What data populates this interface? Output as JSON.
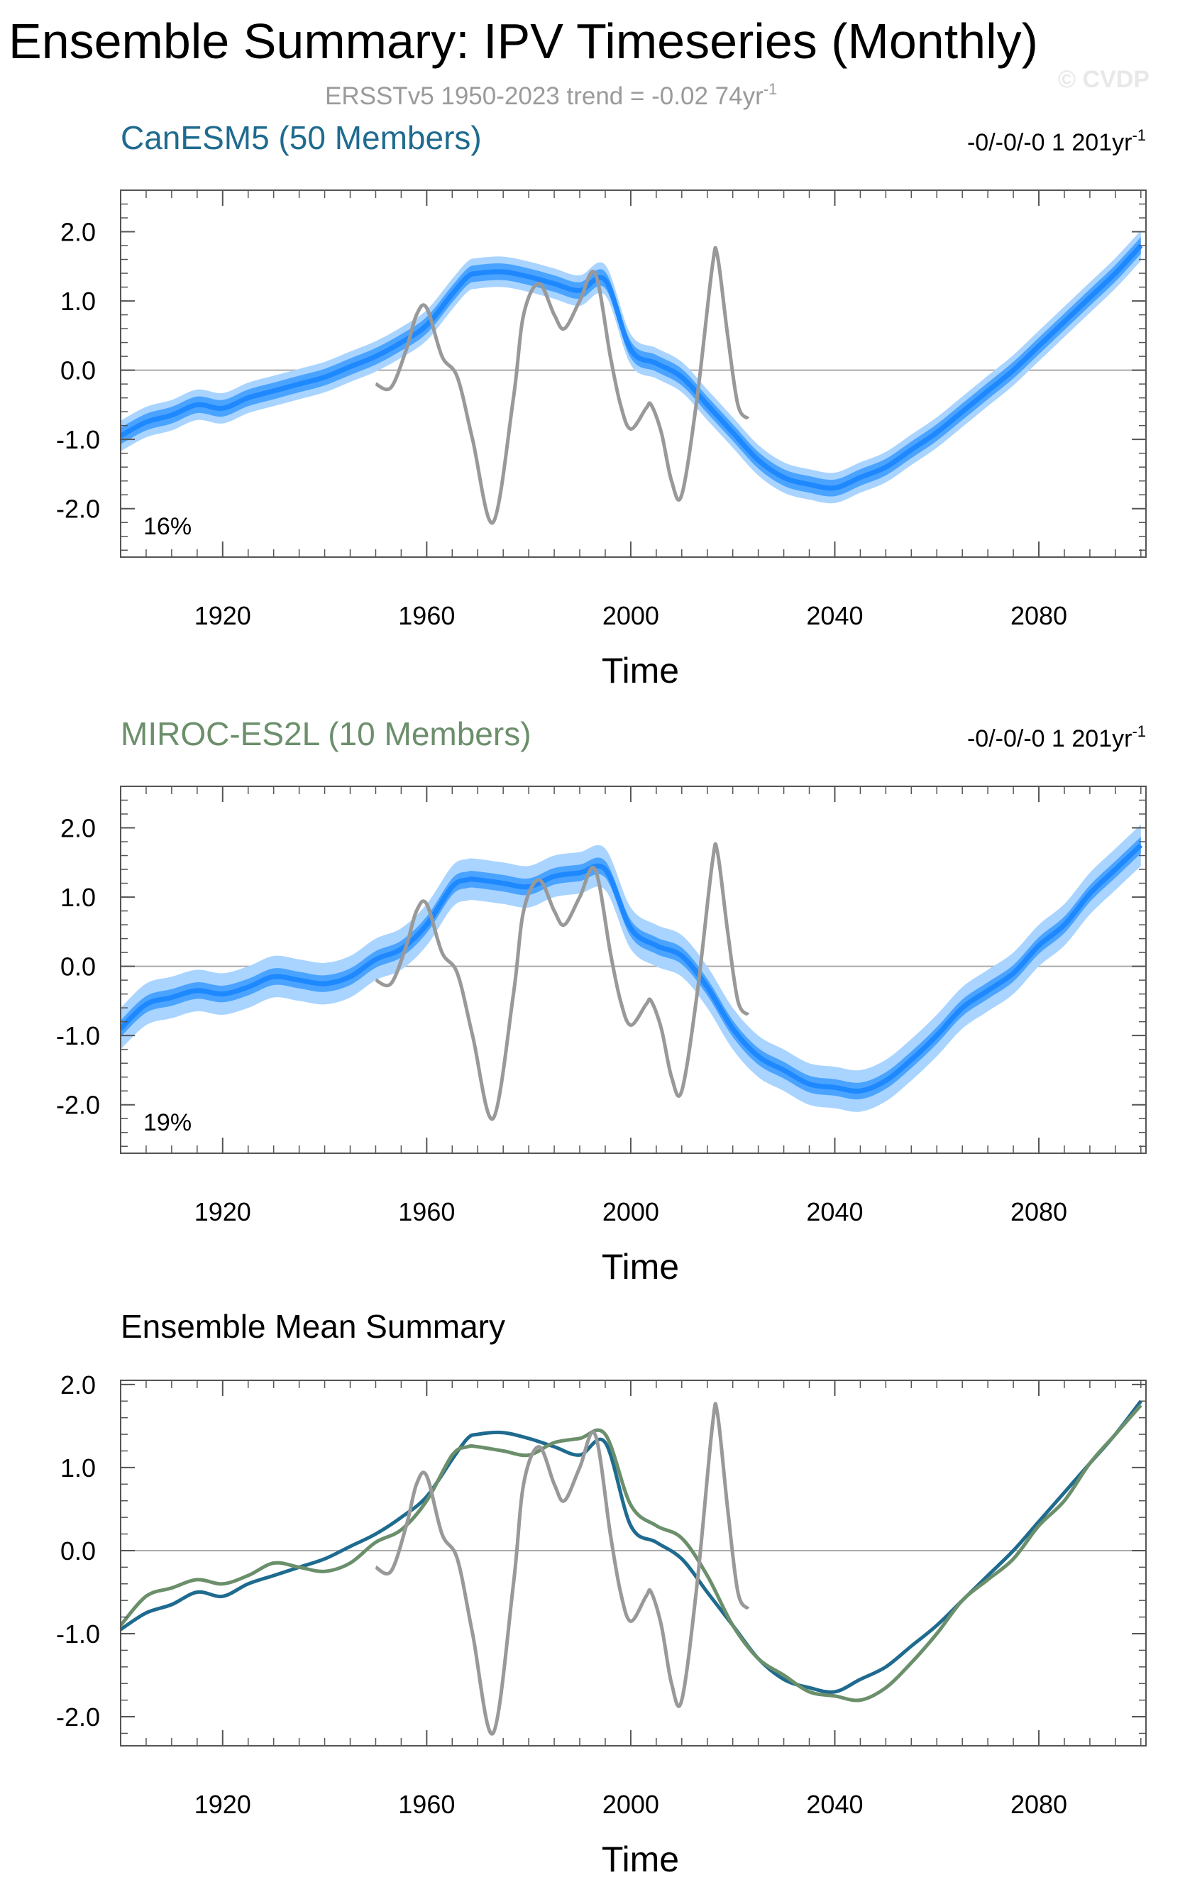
{
  "figure": {
    "title": "Ensemble Summary: IPV Timeseries (Monthly)",
    "subtitle_main": "ERSSTv5 1950-2023 trend = -0.02 74yr",
    "subtitle_sup": "-1",
    "watermark": "© CVDP"
  },
  "colors": {
    "canesm5": "#1f6b8f",
    "miroc": "#6b8f6b",
    "obs": "#999999",
    "mean_line": "#1e88ff",
    "inner_band": "#4aa3ff",
    "outer_band": "#a9d4ff",
    "zero_line": "#aaaaaa",
    "axis": "#555555"
  },
  "chart_data": [
    {
      "type": "line",
      "id": "canesm5",
      "title": "CanESM5 (50 Members)",
      "title_color": "#1f6b8f",
      "trend_main": "-0/-0/-0 1 201yr",
      "trend_sup": "-1",
      "percent": "16%",
      "xlabel": "Time",
      "ylabel": "",
      "xlim": [
        1900,
        2101
      ],
      "ylim": [
        -2.7,
        2.6
      ],
      "xticks": [
        1920,
        1960,
        2000,
        2040,
        2080
      ],
      "xtick_labels": [
        "1920",
        "1960",
        "2000",
        "2040",
        "2080"
      ],
      "yticks": [
        2.0,
        1.0,
        0.0,
        -1.0,
        -2.0
      ],
      "ytick_labels": [
        "2.0",
        "1.0",
        "0.0",
        "-1.0",
        "-2.0"
      ],
      "series": [
        {
          "name": "",
          "role": "mean",
          "x": [
            1900,
            1905,
            1910,
            1915,
            1920,
            1925,
            1930,
            1935,
            1940,
            1945,
            1950,
            1955,
            1960,
            1965,
            1968,
            1970,
            1975,
            1980,
            1985,
            1990,
            1995,
            2000,
            2005,
            2010,
            2015,
            2020,
            2025,
            2030,
            2035,
            2040,
            2045,
            2050,
            2055,
            2060,
            2065,
            2070,
            2075,
            2080,
            2085,
            2090,
            2095,
            2100
          ],
          "y": [
            -0.95,
            -0.75,
            -0.65,
            -0.5,
            -0.55,
            -0.4,
            -0.3,
            -0.2,
            -0.1,
            0.05,
            0.2,
            0.4,
            0.65,
            1.1,
            1.35,
            1.4,
            1.42,
            1.35,
            1.25,
            1.15,
            1.3,
            0.3,
            0.1,
            -0.1,
            -0.5,
            -0.9,
            -1.3,
            -1.55,
            -1.65,
            -1.7,
            -1.55,
            -1.4,
            -1.15,
            -0.9,
            -0.6,
            -0.3,
            0.0,
            0.35,
            0.7,
            1.05,
            1.4,
            1.8
          ],
          "inner": 0.12,
          "outer": 0.22
        },
        {
          "name": "",
          "role": "obs",
          "x": [
            1950,
            1953,
            1956,
            1958,
            1960,
            1963,
            1966,
            1969,
            1973,
            1977,
            1979,
            1982,
            1985,
            1987,
            1990,
            1993,
            1996,
            1998,
            2000,
            2003,
            2004,
            2006,
            2008,
            2010,
            2013,
            2016,
            2017,
            2019,
            2021,
            2023
          ],
          "y": [
            -0.2,
            -0.25,
            0.3,
            0.8,
            0.9,
            0.2,
            -0.1,
            -1.0,
            -2.2,
            -0.4,
            0.8,
            1.25,
            0.8,
            0.6,
            1.0,
            1.4,
            0.2,
            -0.5,
            -0.85,
            -0.55,
            -0.5,
            -0.9,
            -1.6,
            -1.8,
            -0.4,
            1.5,
            1.65,
            0.5,
            -0.5,
            -0.7
          ]
        }
      ]
    },
    {
      "type": "line",
      "id": "miroc",
      "title": "MIROC-ES2L (10 Members)",
      "title_color": "#6b8f6b",
      "trend_main": "-0/-0/-0 1 201yr",
      "trend_sup": "-1",
      "percent": "19%",
      "xlabel": "Time",
      "ylabel": "",
      "xlim": [
        1900,
        2101
      ],
      "ylim": [
        -2.7,
        2.6
      ],
      "xticks": [
        1920,
        1960,
        2000,
        2040,
        2080
      ],
      "xtick_labels": [
        "1920",
        "1960",
        "2000",
        "2040",
        "2080"
      ],
      "yticks": [
        2.0,
        1.0,
        0.0,
        -1.0,
        -2.0
      ],
      "ytick_labels": [
        "2.0",
        "1.0",
        "0.0",
        "-1.0",
        "-2.0"
      ],
      "series": [
        {
          "name": "",
          "role": "mean",
          "x": [
            1900,
            1905,
            1910,
            1915,
            1920,
            1925,
            1930,
            1935,
            1940,
            1945,
            1950,
            1955,
            1960,
            1965,
            1968,
            1970,
            1975,
            1980,
            1985,
            1990,
            1995,
            2000,
            2005,
            2010,
            2015,
            2020,
            2025,
            2030,
            2035,
            2040,
            2045,
            2050,
            2055,
            2060,
            2065,
            2070,
            2075,
            2080,
            2085,
            2090,
            2095,
            2100
          ],
          "y": [
            -0.9,
            -0.55,
            -0.45,
            -0.35,
            -0.4,
            -0.3,
            -0.15,
            -0.2,
            -0.25,
            -0.15,
            0.1,
            0.25,
            0.6,
            1.15,
            1.25,
            1.25,
            1.2,
            1.15,
            1.3,
            1.35,
            1.4,
            0.55,
            0.3,
            0.15,
            -0.3,
            -0.9,
            -1.3,
            -1.5,
            -1.7,
            -1.75,
            -1.8,
            -1.65,
            -1.35,
            -1.0,
            -0.6,
            -0.35,
            -0.1,
            0.3,
            0.6,
            1.05,
            1.4,
            1.75
          ],
          "inner": 0.12,
          "outer": 0.3
        },
        {
          "name": "",
          "role": "obs",
          "x": [
            1950,
            1953,
            1956,
            1958,
            1960,
            1963,
            1966,
            1969,
            1973,
            1977,
            1979,
            1982,
            1985,
            1987,
            1990,
            1993,
            1996,
            1998,
            2000,
            2003,
            2004,
            2006,
            2008,
            2010,
            2013,
            2016,
            2017,
            2019,
            2021,
            2023
          ],
          "y": [
            -0.2,
            -0.25,
            0.3,
            0.8,
            0.9,
            0.2,
            -0.1,
            -1.0,
            -2.2,
            -0.4,
            0.8,
            1.25,
            0.8,
            0.6,
            1.0,
            1.4,
            0.2,
            -0.5,
            -0.85,
            -0.55,
            -0.5,
            -0.9,
            -1.6,
            -1.8,
            -0.4,
            1.5,
            1.65,
            0.5,
            -0.5,
            -0.7
          ]
        }
      ]
    },
    {
      "type": "line",
      "id": "summary",
      "title": "Ensemble Mean Summary",
      "title_color": "#000000",
      "trend_main": "",
      "trend_sup": "",
      "percent": "",
      "xlabel": "Time",
      "ylabel": "",
      "xlim": [
        1900,
        2101
      ],
      "ylim": [
        -2.35,
        2.05
      ],
      "xticks": [
        1920,
        1960,
        2000,
        2040,
        2080
      ],
      "xtick_labels": [
        "1920",
        "1960",
        "2000",
        "2040",
        "2080"
      ],
      "yticks": [
        2.0,
        1.0,
        0.0,
        -1.0,
        -2.0
      ],
      "ytick_labels": [
        "2.0",
        "1.0",
        "0.0",
        "-1.0",
        "-2.0"
      ],
      "series": [
        {
          "name": "",
          "role": "line",
          "color": "#1f6b8f",
          "x": [
            1900,
            1905,
            1910,
            1915,
            1920,
            1925,
            1930,
            1935,
            1940,
            1945,
            1950,
            1955,
            1960,
            1965,
            1968,
            1970,
            1975,
            1980,
            1985,
            1990,
            1995,
            2000,
            2005,
            2010,
            2015,
            2020,
            2025,
            2030,
            2035,
            2040,
            2045,
            2050,
            2055,
            2060,
            2065,
            2070,
            2075,
            2080,
            2085,
            2090,
            2095,
            2100
          ],
          "y": [
            -0.95,
            -0.75,
            -0.65,
            -0.5,
            -0.55,
            -0.4,
            -0.3,
            -0.2,
            -0.1,
            0.05,
            0.2,
            0.4,
            0.65,
            1.1,
            1.35,
            1.4,
            1.42,
            1.35,
            1.25,
            1.15,
            1.3,
            0.3,
            0.1,
            -0.1,
            -0.5,
            -0.9,
            -1.3,
            -1.55,
            -1.65,
            -1.7,
            -1.55,
            -1.4,
            -1.15,
            -0.9,
            -0.6,
            -0.3,
            0.0,
            0.35,
            0.7,
            1.05,
            1.4,
            1.8
          ]
        },
        {
          "name": "",
          "role": "line",
          "color": "#6b8f6b",
          "x": [
            1900,
            1905,
            1910,
            1915,
            1920,
            1925,
            1930,
            1935,
            1940,
            1945,
            1950,
            1955,
            1960,
            1965,
            1968,
            1970,
            1975,
            1980,
            1985,
            1990,
            1995,
            2000,
            2005,
            2010,
            2015,
            2020,
            2025,
            2030,
            2035,
            2040,
            2045,
            2050,
            2055,
            2060,
            2065,
            2070,
            2075,
            2080,
            2085,
            2090,
            2095,
            2100
          ],
          "y": [
            -0.9,
            -0.55,
            -0.45,
            -0.35,
            -0.4,
            -0.3,
            -0.15,
            -0.2,
            -0.25,
            -0.15,
            0.1,
            0.25,
            0.6,
            1.15,
            1.25,
            1.25,
            1.2,
            1.15,
            1.3,
            1.35,
            1.4,
            0.55,
            0.3,
            0.15,
            -0.3,
            -0.9,
            -1.3,
            -1.5,
            -1.7,
            -1.75,
            -1.8,
            -1.65,
            -1.35,
            -1.0,
            -0.6,
            -0.35,
            -0.1,
            0.3,
            0.6,
            1.05,
            1.4,
            1.75
          ]
        },
        {
          "name": "",
          "role": "obs",
          "color": "#999999",
          "x": [
            1950,
            1953,
            1956,
            1958,
            1960,
            1963,
            1966,
            1969,
            1973,
            1977,
            1979,
            1982,
            1985,
            1987,
            1990,
            1993,
            1996,
            1998,
            2000,
            2003,
            2004,
            2006,
            2008,
            2010,
            2013,
            2016,
            2017,
            2019,
            2021,
            2023
          ],
          "y": [
            -0.2,
            -0.25,
            0.3,
            0.8,
            0.9,
            0.2,
            -0.1,
            -1.0,
            -2.2,
            -0.4,
            0.8,
            1.25,
            0.8,
            0.6,
            1.0,
            1.4,
            0.2,
            -0.5,
            -0.85,
            -0.55,
            -0.5,
            -0.9,
            -1.6,
            -1.8,
            -0.4,
            1.5,
            1.65,
            0.5,
            -0.5,
            -0.7
          ]
        }
      ]
    }
  ]
}
